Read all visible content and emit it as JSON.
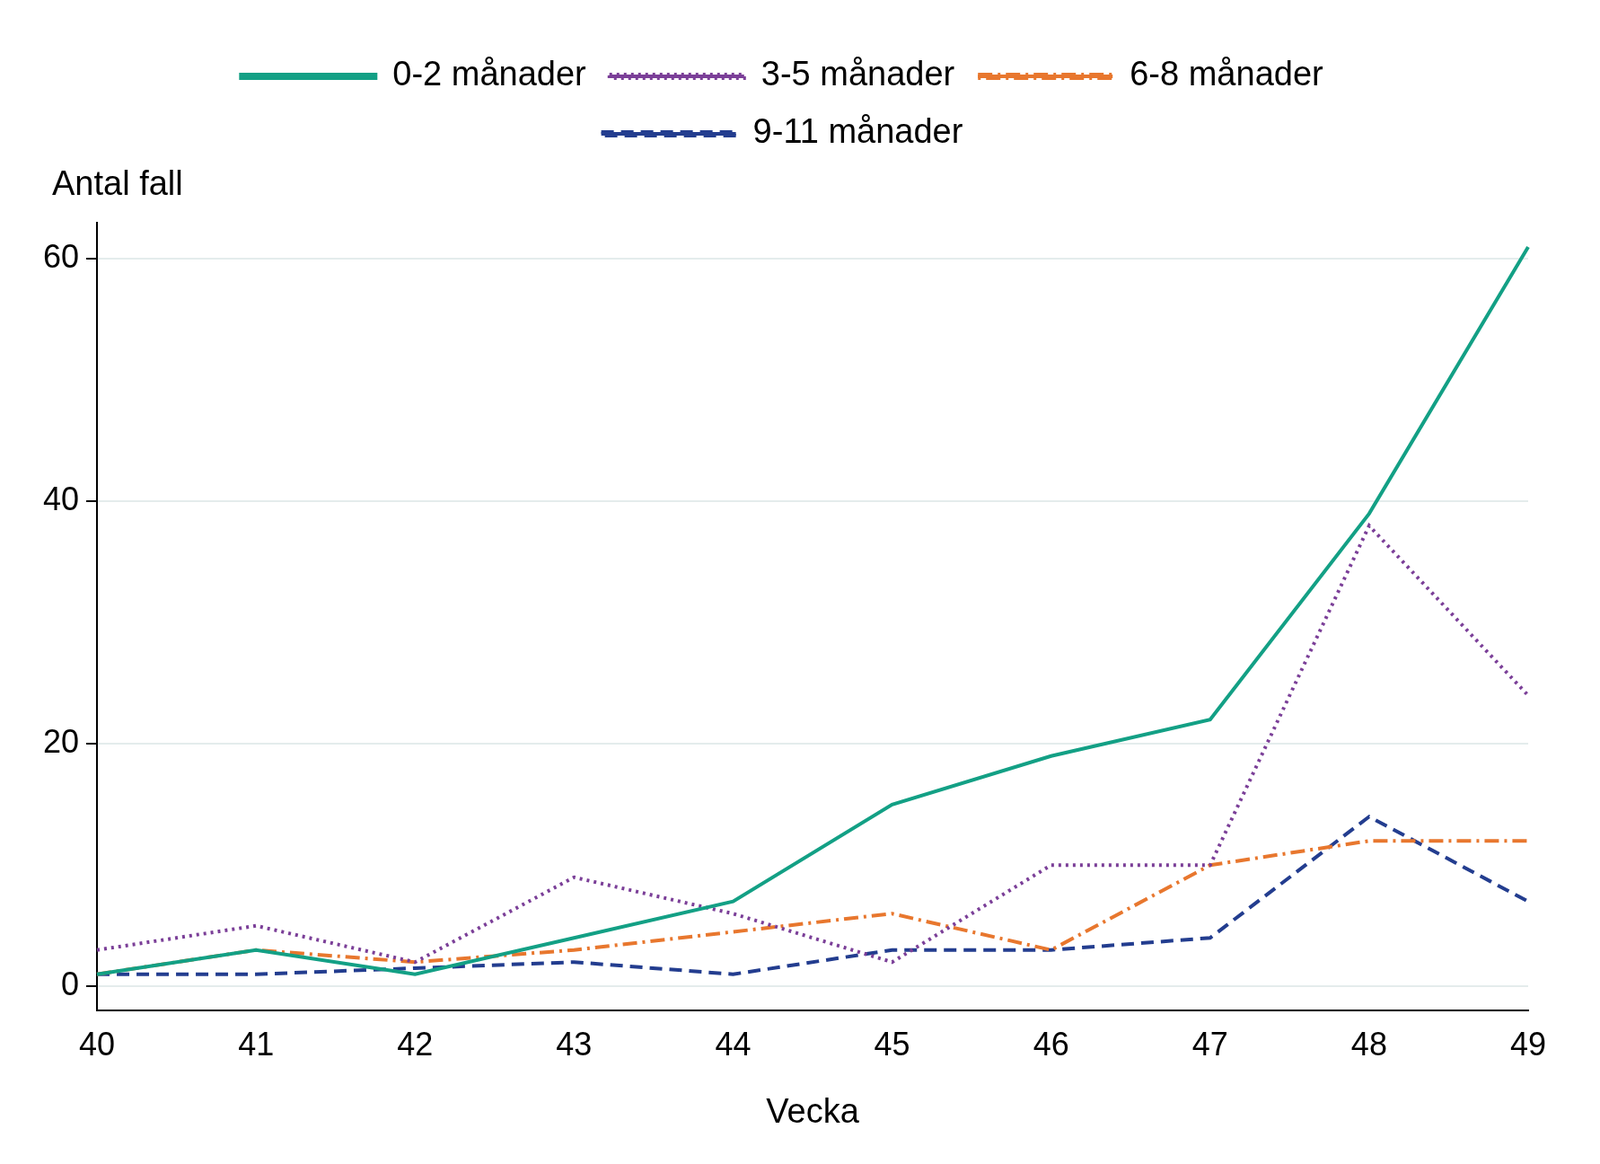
{
  "chart_data": {
    "type": "line",
    "x_label": "Vecka",
    "y_label": "Antal fall",
    "categories": [
      "40",
      "41",
      "42",
      "43",
      "44",
      "45",
      "46",
      "47",
      "48",
      "49"
    ],
    "series": [
      {
        "name": "0-2 månader",
        "color": "#13a085",
        "line_style": "solid",
        "values": [
          1,
          3,
          1,
          4,
          7,
          15,
          19,
          22,
          39,
          61
        ]
      },
      {
        "name": "3-5 månader",
        "color": "#7b3f98",
        "line_style": "dotted",
        "values": [
          3,
          5,
          2,
          9,
          6,
          2,
          10,
          10,
          38,
          24
        ]
      },
      {
        "name": "6-8 månader",
        "color": "#e8772e",
        "line_style": "dashdot",
        "values": [
          1,
          3,
          2,
          3,
          4.5,
          6,
          3,
          10,
          12,
          12
        ]
      },
      {
        "name": "9-11 månader",
        "color": "#233d8f",
        "line_style": "dashed",
        "values": [
          1,
          1,
          1.5,
          2,
          1,
          3,
          3,
          4,
          14,
          7
        ]
      }
    ],
    "ylim": [
      -2,
      63
    ],
    "yticks": [
      0,
      20,
      40,
      60
    ],
    "grid": true,
    "legend": "top"
  }
}
